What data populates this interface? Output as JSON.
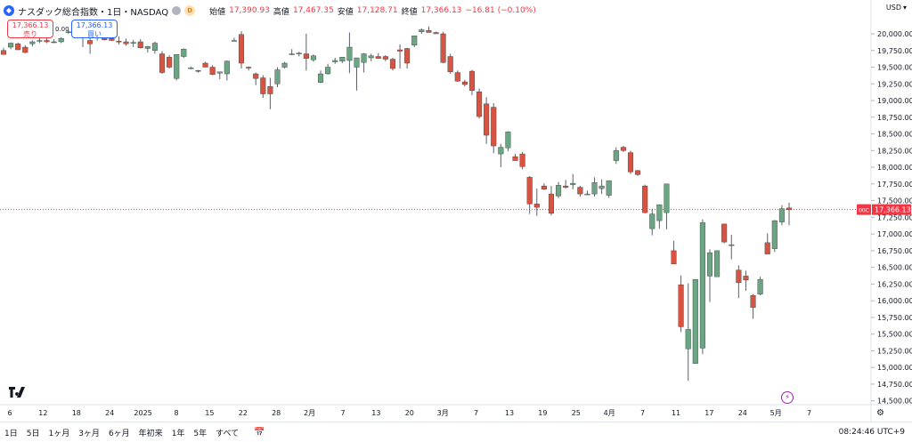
{
  "header": {
    "symbol_title": "ナスダック総合指数・1日・NASDAQ",
    "interval_badge": "D",
    "open_label": "始値",
    "open_value": "17,390.93",
    "high_label": "高値",
    "high_value": "17,467.35",
    "low_label": "安値",
    "low_value": "17,128.71",
    "close_label": "終値",
    "close_value": "17,366.13",
    "change_value": "−16.81 (−0.10%)"
  },
  "trade": {
    "sell_price": "17,366.13",
    "sell_label": "売り",
    "buy_price": "17,366.13",
    "buy_label": "買い",
    "spread": "0.00"
  },
  "price_axis": {
    "currency": "USD",
    "last_tag": "IXIC",
    "last_price": "17,366.13",
    "ticks": [
      "20,000.00",
      "19,750.00",
      "19,500.00",
      "19,250.00",
      "19,000.00",
      "18,750.00",
      "18,500.00",
      "18,250.00",
      "18,000.00",
      "17,750.00",
      "17,500.00",
      "17,250.00",
      "17,000.00",
      "16,750.00",
      "16,500.00",
      "16,250.00",
      "16,000.00",
      "15,750.00",
      "15,500.00",
      "15,250.00",
      "15,000.00",
      "14,750.00",
      "14,500.00"
    ]
  },
  "time_axis": {
    "labels": [
      "6",
      "12",
      "18",
      "24",
      "2025",
      "8",
      "15",
      "22",
      "28",
      "2月",
      "7",
      "13",
      "20",
      "3月",
      "7",
      "13",
      "19",
      "25",
      "4月",
      "7",
      "11",
      "17",
      "24",
      "5月",
      "7"
    ]
  },
  "bottom_bar": {
    "ranges": [
      "1日",
      "5日",
      "1ヶ月",
      "3ヶ月",
      "6ヶ月",
      "年初来",
      "1年",
      "5年",
      "すべて"
    ],
    "clock": "08:24:46 UTC+9"
  },
  "colors": {
    "up": "#6ba583",
    "down": "#d75442",
    "last_price_line": "#f23645",
    "grid": "#f0f3fa"
  },
  "chart_data": {
    "type": "candlestick",
    "ylim": [
      14500,
      20200
    ],
    "grid": false,
    "last_price": 17366.13,
    "candles": [
      {
        "o": 19750,
        "h": 19790,
        "l": 19690,
        "c": 19690
      },
      {
        "o": 19800,
        "h": 19870,
        "l": 19770,
        "c": 19860
      },
      {
        "o": 19850,
        "h": 19870,
        "l": 19760,
        "c": 19760
      },
      {
        "o": 19800,
        "h": 19830,
        "l": 19710,
        "c": 19720
      },
      {
        "o": 19850,
        "h": 19900,
        "l": 19810,
        "c": 19880
      },
      {
        "o": 19890,
        "h": 19940,
        "l": 19860,
        "c": 19900
      },
      {
        "o": 19900,
        "h": 19950,
        "l": 19860,
        "c": 19880
      },
      {
        "o": 19880,
        "h": 19920,
        "l": 19860,
        "c": 19870
      },
      {
        "o": 19880,
        "h": 19950,
        "l": 19860,
        "c": 19930
      },
      {
        "o": 20030,
        "h": 20060,
        "l": 20000,
        "c": 20030
      },
      {
        "o": 20000,
        "h": 20030,
        "l": 19980,
        "c": 20010
      },
      {
        "o": 20000,
        "h": 20030,
        "l": 19800,
        "c": 19960
      },
      {
        "o": 19900,
        "h": 19960,
        "l": 19700,
        "c": 19850
      },
      {
        "o": 19960,
        "h": 20020,
        "l": 19900,
        "c": 20000
      },
      {
        "o": 19940,
        "h": 19980,
        "l": 19900,
        "c": 19910
      },
      {
        "o": 19930,
        "h": 19970,
        "l": 19890,
        "c": 19900
      },
      {
        "o": 19890,
        "h": 19960,
        "l": 19840,
        "c": 19880
      },
      {
        "o": 19880,
        "h": 19930,
        "l": 19820,
        "c": 19850
      },
      {
        "o": 19870,
        "h": 19910,
        "l": 19800,
        "c": 19870
      },
      {
        "o": 19880,
        "h": 19920,
        "l": 19780,
        "c": 19790
      },
      {
        "o": 19780,
        "h": 19820,
        "l": 19720,
        "c": 19810
      },
      {
        "o": 19750,
        "h": 19880,
        "l": 19700,
        "c": 19860
      },
      {
        "o": 19700,
        "h": 19740,
        "l": 19400,
        "c": 19420
      },
      {
        "o": 19650,
        "h": 19680,
        "l": 19480,
        "c": 19500
      },
      {
        "o": 19330,
        "h": 19680,
        "l": 19300,
        "c": 19690
      },
      {
        "o": 19660,
        "h": 19780,
        "l": 19640,
        "c": 19770
      },
      {
        "o": 19490,
        "h": 19510,
        "l": 19470,
        "c": 19490
      },
      {
        "o": 19450,
        "h": 19460,
        "l": 19420,
        "c": 19440
      },
      {
        "o": 19560,
        "h": 19580,
        "l": 19500,
        "c": 19500
      },
      {
        "o": 19500,
        "h": 19530,
        "l": 19380,
        "c": 19390
      },
      {
        "o": 19410,
        "h": 19430,
        "l": 19320,
        "c": 19430
      },
      {
        "o": 19400,
        "h": 19600,
        "l": 19300,
        "c": 19590
      },
      {
        "o": 19900,
        "h": 19940,
        "l": 19890,
        "c": 19900
      },
      {
        "o": 19990,
        "h": 20040,
        "l": 19480,
        "c": 19560
      },
      {
        "o": 19500,
        "h": 19510,
        "l": 19450,
        "c": 19490
      },
      {
        "o": 19400,
        "h": 19420,
        "l": 19230,
        "c": 19330
      },
      {
        "o": 19340,
        "h": 19380,
        "l": 19040,
        "c": 19100
      },
      {
        "o": 19210,
        "h": 19340,
        "l": 18870,
        "c": 19100
      },
      {
        "o": 19250,
        "h": 19500,
        "l": 19200,
        "c": 19460
      },
      {
        "o": 19500,
        "h": 19580,
        "l": 19480,
        "c": 19560
      },
      {
        "o": 19700,
        "h": 19770,
        "l": 19680,
        "c": 19700
      },
      {
        "o": 19700,
        "h": 19730,
        "l": 19660,
        "c": 19710
      },
      {
        "o": 19700,
        "h": 20000,
        "l": 19450,
        "c": 19630
      },
      {
        "o": 19610,
        "h": 19690,
        "l": 19580,
        "c": 19670
      },
      {
        "o": 19270,
        "h": 19450,
        "l": 19260,
        "c": 19400
      },
      {
        "o": 19400,
        "h": 19550,
        "l": 19390,
        "c": 19500
      },
      {
        "o": 19580,
        "h": 19640,
        "l": 19550,
        "c": 19600
      },
      {
        "o": 19590,
        "h": 19650,
        "l": 19560,
        "c": 19650
      },
      {
        "o": 19600,
        "h": 20020,
        "l": 19410,
        "c": 19800
      },
      {
        "o": 19500,
        "h": 19640,
        "l": 19150,
        "c": 19640
      },
      {
        "o": 19570,
        "h": 19710,
        "l": 19420,
        "c": 19700
      },
      {
        "o": 19640,
        "h": 19700,
        "l": 19590,
        "c": 19670
      },
      {
        "o": 19660,
        "h": 19710,
        "l": 19630,
        "c": 19630
      },
      {
        "o": 19660,
        "h": 19680,
        "l": 19590,
        "c": 19620
      },
      {
        "o": 19620,
        "h": 19640,
        "l": 19450,
        "c": 19480
      },
      {
        "o": 19760,
        "h": 19840,
        "l": 19480,
        "c": 19740
      },
      {
        "o": 19780,
        "h": 19790,
        "l": 19480,
        "c": 19560
      },
      {
        "o": 19830,
        "h": 19960,
        "l": 19800,
        "c": 19970
      },
      {
        "o": 20030,
        "h": 20080,
        "l": 20000,
        "c": 20060
      },
      {
        "o": 20050,
        "h": 20110,
        "l": 20020,
        "c": 20020
      },
      {
        "o": 20020,
        "h": 20030,
        "l": 20000,
        "c": 20000
      },
      {
        "o": 20000,
        "h": 20030,
        "l": 19560,
        "c": 19570
      },
      {
        "o": 19660,
        "h": 19700,
        "l": 19400,
        "c": 19430
      },
      {
        "o": 19420,
        "h": 19450,
        "l": 19280,
        "c": 19290
      },
      {
        "o": 19280,
        "h": 19310,
        "l": 19210,
        "c": 19240
      },
      {
        "o": 19440,
        "h": 19460,
        "l": 19080,
        "c": 19150
      },
      {
        "o": 19130,
        "h": 19180,
        "l": 18730,
        "c": 18760
      },
      {
        "o": 18950,
        "h": 19050,
        "l": 18350,
        "c": 18480
      },
      {
        "o": 18900,
        "h": 18960,
        "l": 18210,
        "c": 18320
      },
      {
        "o": 18200,
        "h": 18350,
        "l": 18000,
        "c": 18300
      },
      {
        "o": 18290,
        "h": 18540,
        "l": 18240,
        "c": 18530
      },
      {
        "o": 18160,
        "h": 18200,
        "l": 18100,
        "c": 18100
      },
      {
        "o": 18200,
        "h": 18230,
        "l": 17970,
        "c": 18010
      },
      {
        "o": 17850,
        "h": 17870,
        "l": 17300,
        "c": 17450
      },
      {
        "o": 17450,
        "h": 17680,
        "l": 17270,
        "c": 17400
      },
      {
        "o": 17720,
        "h": 17760,
        "l": 17660,
        "c": 17670
      },
      {
        "o": 17600,
        "h": 17720,
        "l": 17280,
        "c": 17310
      },
      {
        "o": 17570,
        "h": 17780,
        "l": 17540,
        "c": 17730
      },
      {
        "o": 17720,
        "h": 17810,
        "l": 17680,
        "c": 17700
      },
      {
        "o": 17740,
        "h": 17900,
        "l": 17670,
        "c": 17760
      },
      {
        "o": 17700,
        "h": 17720,
        "l": 17560,
        "c": 17600
      },
      {
        "o": 17600,
        "h": 17650,
        "l": 17590,
        "c": 17600
      },
      {
        "o": 17600,
        "h": 17850,
        "l": 17560,
        "c": 17770
      },
      {
        "o": 17680,
        "h": 17820,
        "l": 17600,
        "c": 17720
      },
      {
        "o": 17580,
        "h": 17800,
        "l": 17540,
        "c": 17800
      },
      {
        "o": 18100,
        "h": 18300,
        "l": 18050,
        "c": 18250
      },
      {
        "o": 18300,
        "h": 18320,
        "l": 18230,
        "c": 18250
      },
      {
        "o": 18220,
        "h": 18250,
        "l": 17900,
        "c": 17930
      },
      {
        "o": 17950,
        "h": 17960,
        "l": 17870,
        "c": 17890
      },
      {
        "o": 17720,
        "h": 17740,
        "l": 17310,
        "c": 17320
      },
      {
        "o": 17080,
        "h": 17380,
        "l": 16980,
        "c": 17300
      },
      {
        "o": 17200,
        "h": 17440,
        "l": 17080,
        "c": 17440
      },
      {
        "o": 17320,
        "h": 17740,
        "l": 17070,
        "c": 17750
      },
      {
        "o": 16750,
        "h": 16900,
        "l": 16550,
        "c": 16550
      },
      {
        "o": 16240,
        "h": 16380,
        "l": 15530,
        "c": 15610
      },
      {
        "o": 15280,
        "h": 16260,
        "l": 14800,
        "c": 15570
      },
      {
        "o": 15060,
        "h": 16280,
        "l": 15060,
        "c": 16320
      },
      {
        "o": 15290,
        "h": 17220,
        "l": 15200,
        "c": 17170
      },
      {
        "o": 16370,
        "h": 16770,
        "l": 15980,
        "c": 16720
      },
      {
        "o": 16360,
        "h": 16750,
        "l": 16360,
        "c": 16750
      },
      {
        "o": 17150,
        "h": 17120,
        "l": 16860,
        "c": 16880
      },
      {
        "o": 16840,
        "h": 16990,
        "l": 16620,
        "c": 16840
      },
      {
        "o": 16460,
        "h": 16530,
        "l": 16040,
        "c": 16270
      },
      {
        "o": 16370,
        "h": 16450,
        "l": 16150,
        "c": 16310
      },
      {
        "o": 16080,
        "h": 16100,
        "l": 15730,
        "c": 15900
      },
      {
        "o": 16100,
        "h": 16360,
        "l": 16080,
        "c": 16320
      },
      {
        "o": 16870,
        "h": 17010,
        "l": 16700,
        "c": 16700
      },
      {
        "o": 16780,
        "h": 17210,
        "l": 16730,
        "c": 17200
      },
      {
        "o": 17180,
        "h": 17430,
        "l": 17130,
        "c": 17380
      },
      {
        "o": 17390,
        "h": 17470,
        "l": 17130,
        "c": 17366
      }
    ]
  }
}
